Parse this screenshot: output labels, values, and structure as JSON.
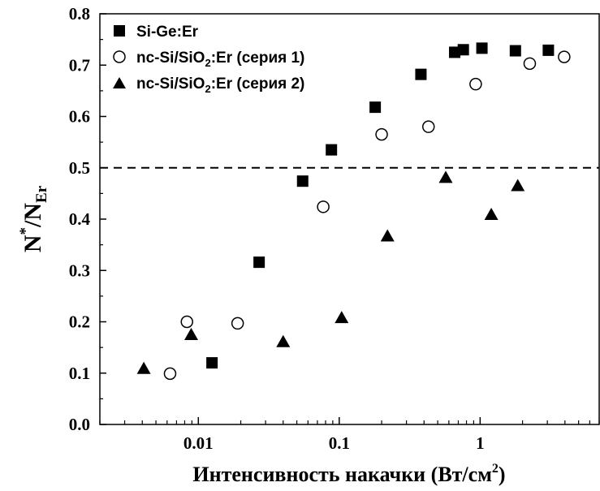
{
  "chart_data": {
    "type": "scatter",
    "x_scale": "log",
    "xlim": [
      0.002,
      7
    ],
    "ylim": [
      0.0,
      0.8
    ],
    "x_ticks": [
      {
        "value": 0.01,
        "label": "0.01"
      },
      {
        "value": 0.1,
        "label": "0.1"
      },
      {
        "value": 1,
        "label": "1"
      }
    ],
    "y_ticks": [
      {
        "value": 0.0,
        "label": "0.0"
      },
      {
        "value": 0.1,
        "label": "0.1"
      },
      {
        "value": 0.2,
        "label": "0.2"
      },
      {
        "value": 0.3,
        "label": "0.3"
      },
      {
        "value": 0.4,
        "label": "0.4"
      },
      {
        "value": 0.5,
        "label": "0.5"
      },
      {
        "value": 0.6,
        "label": "0.6"
      },
      {
        "value": 0.7,
        "label": "0.7"
      },
      {
        "value": 0.8,
        "label": "0.8"
      }
    ],
    "xlabel": {
      "main": "Интенсивность накачки (Вт/см",
      "sup": "2",
      "tail": ")"
    },
    "ylabel": {
      "n": "N",
      "star": "*",
      "mid": "/N",
      "sub": "Er"
    },
    "reference_line": {
      "y": 0.5,
      "style": "dashed"
    },
    "legend_position": "top-left",
    "grid": false,
    "series": [
      {
        "name_parts": [
          "Si-Ge:Er",
          "",
          ""
        ],
        "marker": "square-filled",
        "color": "#000000",
        "points": [
          [
            0.0125,
            0.12
          ],
          [
            0.027,
            0.316
          ],
          [
            0.055,
            0.474
          ],
          [
            0.088,
            0.535
          ],
          [
            0.18,
            0.618
          ],
          [
            0.38,
            0.682
          ],
          [
            0.66,
            0.725
          ],
          [
            0.76,
            0.73
          ],
          [
            1.03,
            0.733
          ],
          [
            1.78,
            0.728
          ],
          [
            3.05,
            0.729
          ]
        ]
      },
      {
        "name_parts": [
          "nc-Si/SiO",
          "2",
          ":Er (серия 1)"
        ],
        "marker": "circle-open",
        "color": "#000000",
        "points": [
          [
            0.0063,
            0.099
          ],
          [
            0.0083,
            0.2
          ],
          [
            0.019,
            0.197
          ],
          [
            0.077,
            0.424
          ],
          [
            0.2,
            0.565
          ],
          [
            0.43,
            0.58
          ],
          [
            0.93,
            0.663
          ],
          [
            2.25,
            0.703
          ],
          [
            3.95,
            0.716
          ]
        ]
      },
      {
        "name_parts": [
          "nc-Si/SiO",
          "2",
          ":Er (серия 2)"
        ],
        "marker": "triangle-filled",
        "color": "#000000",
        "points": [
          [
            0.0041,
            0.108
          ],
          [
            0.0089,
            0.174
          ],
          [
            0.04,
            0.16
          ],
          [
            0.104,
            0.207
          ],
          [
            0.22,
            0.366
          ],
          [
            0.57,
            0.48
          ],
          [
            1.2,
            0.408
          ],
          [
            1.85,
            0.464
          ]
        ]
      }
    ]
  }
}
